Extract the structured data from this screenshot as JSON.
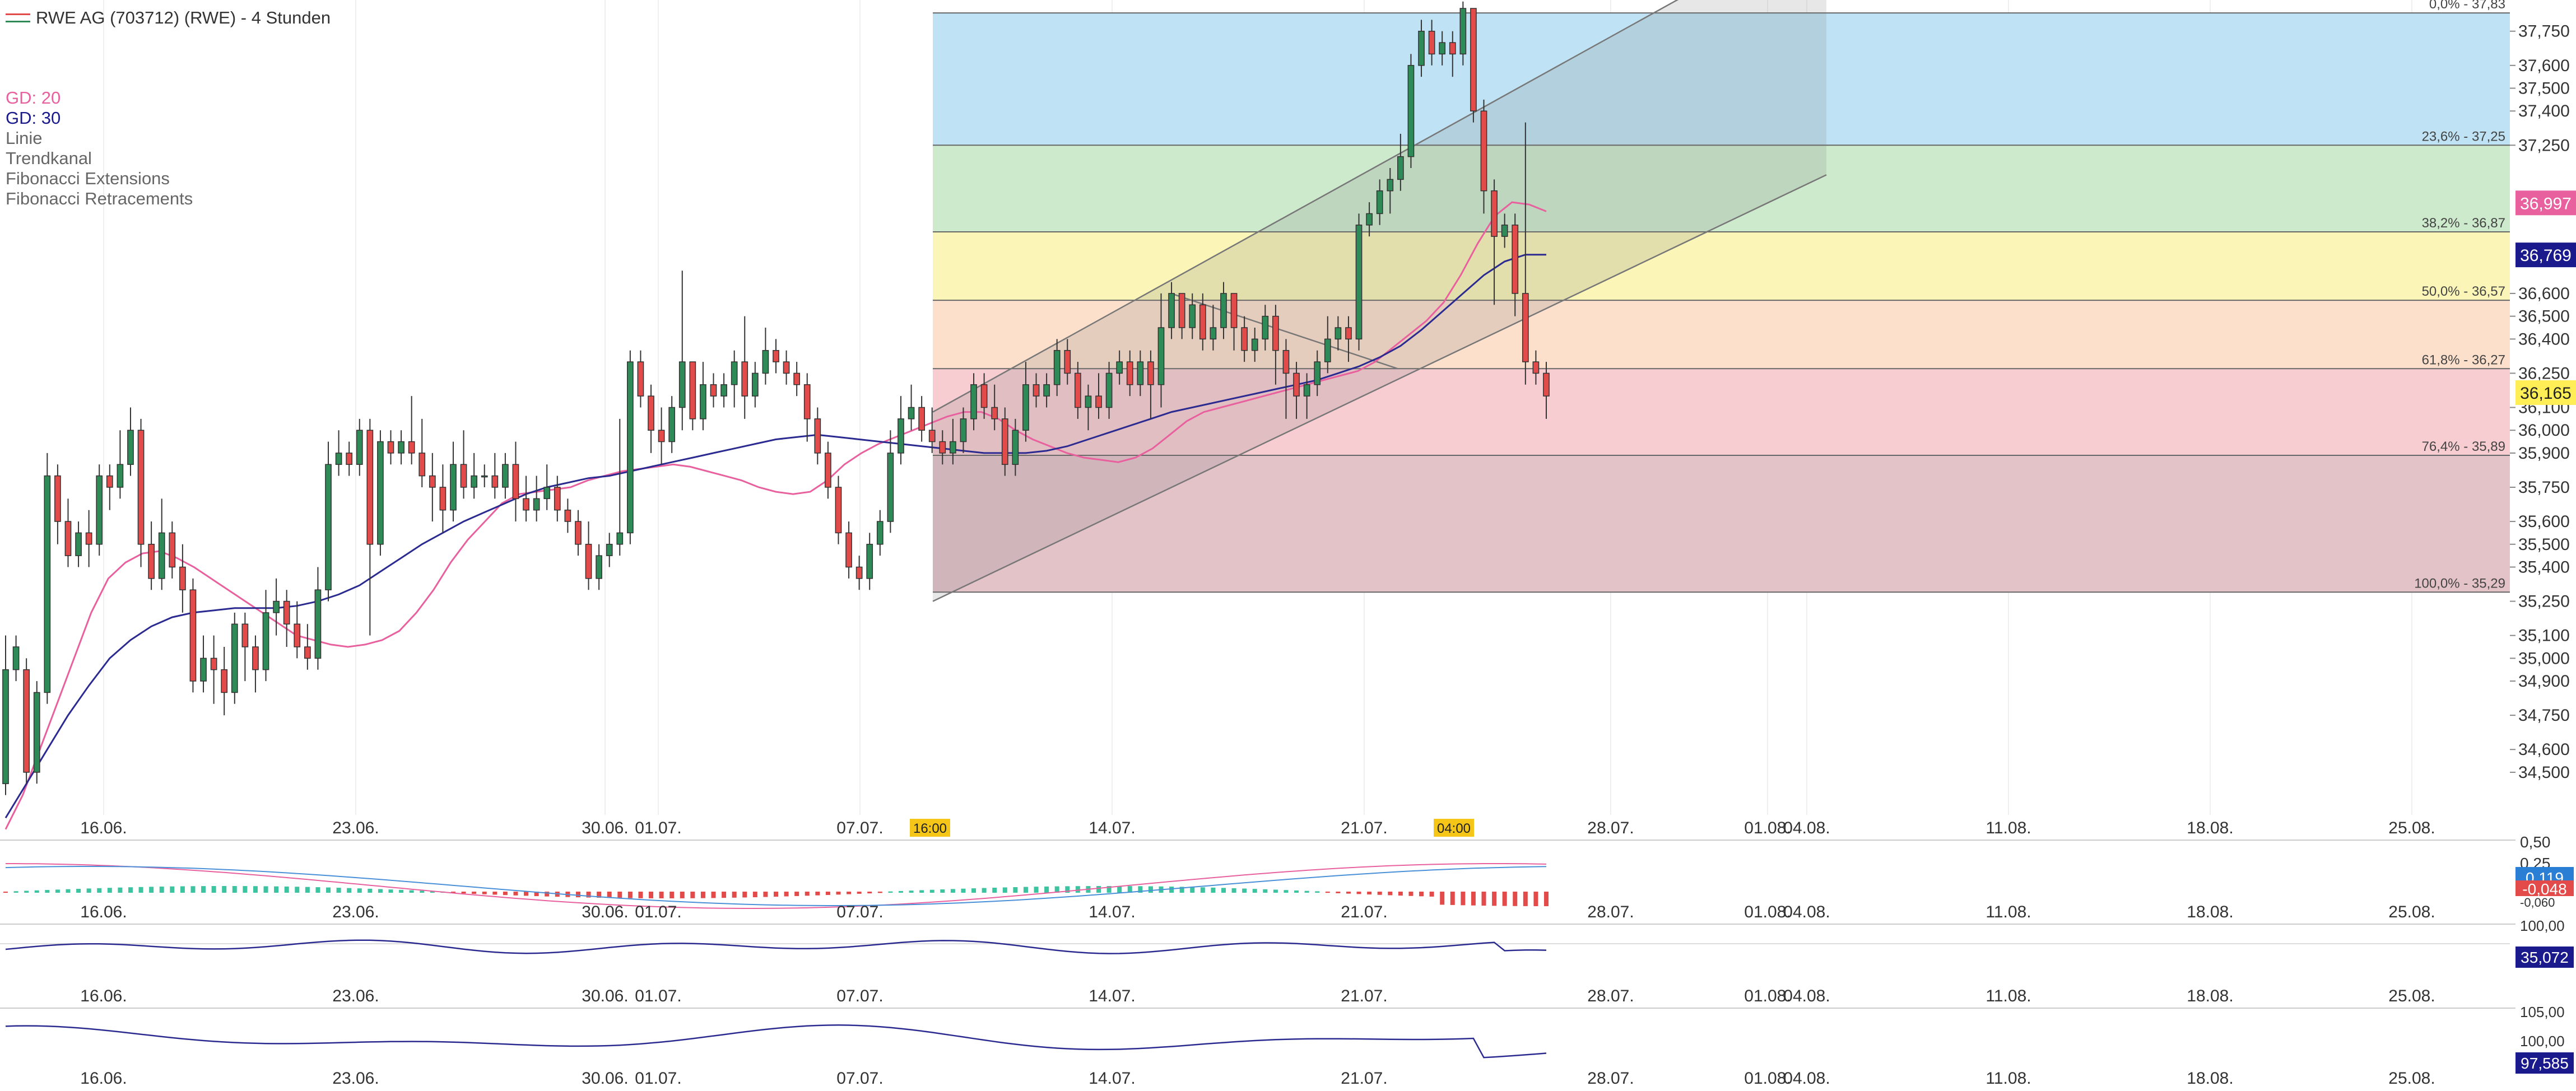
{
  "chart_data": {
    "type": "candlestick",
    "title": "RWE AG (703712) (RWE) - 4 Stunden",
    "legend": [
      {
        "label": "GD: 20",
        "color": "#e8609e"
      },
      {
        "label": "GD: 30",
        "color": "#1a1a8c"
      },
      {
        "label": "Linie",
        "color": "#666666"
      },
      {
        "label": "Trendkanal",
        "color": "#666666"
      },
      {
        "label": "Fibonacci Extensions",
        "color": "#666666"
      },
      {
        "label": "Fibonacci Retracements",
        "color": "#666666"
      }
    ],
    "ylim": [
      34.35,
      37.85
    ],
    "y_ticks": [
      "37,750",
      "37,600",
      "37,500",
      "37,400",
      "37,250",
      "36,600",
      "36,500",
      "36,400",
      "36,250",
      "36,100",
      "36,000",
      "35,900",
      "35,750",
      "35,600",
      "35,500",
      "35,400",
      "35,250",
      "35,100",
      "35,000",
      "34,900",
      "34,750",
      "34,600",
      "34,500"
    ],
    "x_ticks": [
      "16.06.",
      "23.06.",
      "30.06.",
      "01.07.",
      "07.07.",
      "14.07.",
      "21.07.",
      "28.07.",
      "01.08.",
      "04.08.",
      "11.08.",
      "18.08.",
      "25.08."
    ],
    "time_markers": [
      "16:00",
      "04:00"
    ],
    "fibonacci": [
      {
        "label": "0,0% - 37,83",
        "value": 37.83
      },
      {
        "label": "23,6% - 37,25",
        "value": 37.25
      },
      {
        "label": "38,2% - 36,87",
        "value": 36.87
      },
      {
        "label": "50,0% - 36,57",
        "value": 36.57
      },
      {
        "label": "61,8% - 36,27",
        "value": 36.27
      },
      {
        "label": "76,4% - 35,89",
        "value": 35.89
      },
      {
        "label": "100,0% - 35,29",
        "value": 35.29
      }
    ],
    "badges": [
      {
        "label": "36,997",
        "value": 36.997,
        "bg": "#e8609e",
        "fg": "#ffffff"
      },
      {
        "label": "36,769",
        "value": 36.769,
        "bg": "#1a1a8c",
        "fg": "#ffffff"
      },
      {
        "label": "36,165",
        "value": 36.165,
        "bg": "#ffee55",
        "fg": "#222222"
      }
    ],
    "candles": [
      [
        34.45,
        34.95,
        34.4,
        35.1
      ],
      [
        34.95,
        35.05,
        34.9,
        35.1
      ],
      [
        34.95,
        34.5,
        34.45,
        35.0
      ],
      [
        34.5,
        34.85,
        34.45,
        34.9
      ],
      [
        34.85,
        35.8,
        34.8,
        35.9
      ],
      [
        35.8,
        35.6,
        35.5,
        35.85
      ],
      [
        35.6,
        35.45,
        35.4,
        35.7
      ],
      [
        35.45,
        35.55,
        35.4,
        35.6
      ],
      [
        35.55,
        35.5,
        35.4,
        35.65
      ],
      [
        35.5,
        35.8,
        35.45,
        35.85
      ],
      [
        35.8,
        35.75,
        35.65,
        35.85
      ],
      [
        35.75,
        35.85,
        35.7,
        36.0
      ],
      [
        35.85,
        36.0,
        35.8,
        36.1
      ],
      [
        36.0,
        35.5,
        35.4,
        36.05
      ],
      [
        35.5,
        35.35,
        35.3,
        35.6
      ],
      [
        35.35,
        35.55,
        35.3,
        35.7
      ],
      [
        35.55,
        35.4,
        35.35,
        35.6
      ],
      [
        35.4,
        35.3,
        35.2,
        35.5
      ],
      [
        35.3,
        34.9,
        34.85,
        35.35
      ],
      [
        34.9,
        35.0,
        34.85,
        35.1
      ],
      [
        35.0,
        34.95,
        34.8,
        35.1
      ],
      [
        34.95,
        34.85,
        34.75,
        35.05
      ],
      [
        34.85,
        35.15,
        34.8,
        35.2
      ],
      [
        35.15,
        35.05,
        34.9,
        35.2
      ],
      [
        35.05,
        34.95,
        34.85,
        35.1
      ],
      [
        34.95,
        35.2,
        34.9,
        35.3
      ],
      [
        35.2,
        35.25,
        35.1,
        35.35
      ],
      [
        35.25,
        35.15,
        35.05,
        35.3
      ],
      [
        35.15,
        35.05,
        35.0,
        35.25
      ],
      [
        35.05,
        35.0,
        34.95,
        35.15
      ],
      [
        35.0,
        35.3,
        34.95,
        35.4
      ],
      [
        35.3,
        35.85,
        35.25,
        35.95
      ],
      [
        35.85,
        35.9,
        35.8,
        36.0
      ],
      [
        35.9,
        35.85,
        35.8,
        35.95
      ],
      [
        35.85,
        36.0,
        35.8,
        36.05
      ],
      [
        36.0,
        35.5,
        35.1,
        36.05
      ],
      [
        35.5,
        35.95,
        35.45,
        36.0
      ],
      [
        35.95,
        35.9,
        35.85,
        36.0
      ],
      [
        35.9,
        35.95,
        35.85,
        36.0
      ],
      [
        35.95,
        35.9,
        35.85,
        36.15
      ],
      [
        35.9,
        35.8,
        35.75,
        36.05
      ],
      [
        35.8,
        35.75,
        35.6,
        35.9
      ],
      [
        35.75,
        35.65,
        35.55,
        35.85
      ],
      [
        35.65,
        35.85,
        35.6,
        35.95
      ],
      [
        35.85,
        35.75,
        35.7,
        36.0
      ],
      [
        35.75,
        35.8,
        35.7,
        35.9
      ],
      [
        35.8,
        35.8,
        35.75,
        35.85
      ],
      [
        35.8,
        35.75,
        35.7,
        35.9
      ],
      [
        35.75,
        35.85,
        35.7,
        35.9
      ],
      [
        35.85,
        35.7,
        35.6,
        35.95
      ],
      [
        35.7,
        35.65,
        35.6,
        35.8
      ],
      [
        35.65,
        35.7,
        35.6,
        35.8
      ],
      [
        35.7,
        35.75,
        35.65,
        35.85
      ],
      [
        35.75,
        35.65,
        35.6,
        35.8
      ],
      [
        35.65,
        35.6,
        35.55,
        35.7
      ],
      [
        35.6,
        35.5,
        35.45,
        35.65
      ],
      [
        35.5,
        35.35,
        35.3,
        35.6
      ],
      [
        35.35,
        35.45,
        35.3,
        35.5
      ],
      [
        35.45,
        35.5,
        35.4,
        35.55
      ],
      [
        35.5,
        35.55,
        35.45,
        36.05
      ],
      [
        35.55,
        36.3,
        35.5,
        36.35
      ],
      [
        36.3,
        36.15,
        36.1,
        36.35
      ],
      [
        36.15,
        36.0,
        35.9,
        36.2
      ],
      [
        36.0,
        35.95,
        35.85,
        36.1
      ],
      [
        35.95,
        36.1,
        35.9,
        36.15
      ],
      [
        36.1,
        36.3,
        36.0,
        36.7
      ],
      [
        36.3,
        36.05,
        36.0,
        36.3
      ],
      [
        36.05,
        36.2,
        36.0,
        36.3
      ],
      [
        36.2,
        36.15,
        36.1,
        36.25
      ],
      [
        36.15,
        36.2,
        36.1,
        36.25
      ],
      [
        36.2,
        36.3,
        36.1,
        36.35
      ],
      [
        36.3,
        36.15,
        36.05,
        36.5
      ],
      [
        36.15,
        36.25,
        36.1,
        36.3
      ],
      [
        36.25,
        36.35,
        36.2,
        36.45
      ],
      [
        36.35,
        36.3,
        36.25,
        36.4
      ],
      [
        36.3,
        36.25,
        36.2,
        36.35
      ],
      [
        36.25,
        36.2,
        36.15,
        36.3
      ],
      [
        36.2,
        36.05,
        35.95,
        36.25
      ],
      [
        36.05,
        35.9,
        35.85,
        36.1
      ],
      [
        35.9,
        35.75,
        35.7,
        35.95
      ],
      [
        35.75,
        35.55,
        35.5,
        35.8
      ],
      [
        35.55,
        35.4,
        35.35,
        35.6
      ],
      [
        35.4,
        35.35,
        35.3,
        35.45
      ],
      [
        35.35,
        35.5,
        35.3,
        35.55
      ],
      [
        35.5,
        35.6,
        35.45,
        35.65
      ],
      [
        35.6,
        35.9,
        35.55,
        36.0
      ],
      [
        35.9,
        36.05,
        35.85,
        36.15
      ],
      [
        36.05,
        36.1,
        36.0,
        36.2
      ],
      [
        36.1,
        36.0,
        35.95,
        36.15
      ],
      [
        36.0,
        35.95,
        35.9,
        36.1
      ],
      [
        35.95,
        35.9,
        35.85,
        36.0
      ],
      [
        35.9,
        35.95,
        35.85,
        36.05
      ],
      [
        35.95,
        36.05,
        35.9,
        36.1
      ],
      [
        36.05,
        36.2,
        36.0,
        36.25
      ],
      [
        36.2,
        36.1,
        36.05,
        36.25
      ],
      [
        36.1,
        36.05,
        36.0,
        36.2
      ],
      [
        36.05,
        35.85,
        35.8,
        36.1
      ],
      [
        35.85,
        36.0,
        35.8,
        36.05
      ],
      [
        36.0,
        36.2,
        35.95,
        36.3
      ],
      [
        36.2,
        36.15,
        36.1,
        36.25
      ],
      [
        36.15,
        36.2,
        36.1,
        36.25
      ],
      [
        36.2,
        36.35,
        36.15,
        36.4
      ],
      [
        36.35,
        36.25,
        36.2,
        36.4
      ],
      [
        36.25,
        36.1,
        36.05,
        36.3
      ],
      [
        36.1,
        36.15,
        36.0,
        36.2
      ],
      [
        36.15,
        36.1,
        36.05,
        36.25
      ],
      [
        36.1,
        36.25,
        36.05,
        36.3
      ],
      [
        36.25,
        36.3,
        36.2,
        36.35
      ],
      [
        36.3,
        36.2,
        36.15,
        36.35
      ],
      [
        36.2,
        36.3,
        36.15,
        36.35
      ],
      [
        36.3,
        36.2,
        36.05,
        36.35
      ],
      [
        36.2,
        36.45,
        36.1,
        36.6
      ],
      [
        36.45,
        36.6,
        36.4,
        36.65
      ],
      [
        36.6,
        36.45,
        36.4,
        36.6
      ],
      [
        36.45,
        36.55,
        36.4,
        36.6
      ],
      [
        36.55,
        36.4,
        36.35,
        36.6
      ],
      [
        36.4,
        36.45,
        36.35,
        36.55
      ],
      [
        36.45,
        36.6,
        36.4,
        36.65
      ],
      [
        36.6,
        36.45,
        36.35,
        36.6
      ],
      [
        36.45,
        36.35,
        36.3,
        36.5
      ],
      [
        36.35,
        36.4,
        36.3,
        36.45
      ],
      [
        36.4,
        36.5,
        36.35,
        36.55
      ],
      [
        36.5,
        36.35,
        36.2,
        36.55
      ],
      [
        36.35,
        36.25,
        36.05,
        36.4
      ],
      [
        36.25,
        36.15,
        36.05,
        36.3
      ],
      [
        36.15,
        36.2,
        36.05,
        36.25
      ],
      [
        36.2,
        36.3,
        36.15,
        36.35
      ],
      [
        36.3,
        36.4,
        36.25,
        36.5
      ],
      [
        36.4,
        36.45,
        36.35,
        36.5
      ],
      [
        36.45,
        36.4,
        36.3,
        36.5
      ],
      [
        36.4,
        36.9,
        36.35,
        36.95
      ],
      [
        36.9,
        36.95,
        36.85,
        37.0
      ],
      [
        36.95,
        37.05,
        36.9,
        37.1
      ],
      [
        37.05,
        37.1,
        36.95,
        37.15
      ],
      [
        37.1,
        37.2,
        37.05,
        37.3
      ],
      [
        37.2,
        37.6,
        37.15,
        37.65
      ],
      [
        37.6,
        37.75,
        37.55,
        37.8
      ],
      [
        37.75,
        37.65,
        37.6,
        37.8
      ],
      [
        37.65,
        37.7,
        37.6,
        37.75
      ],
      [
        37.7,
        37.65,
        37.55,
        37.75
      ],
      [
        37.65,
        37.85,
        37.6,
        37.88
      ],
      [
        37.85,
        37.4,
        37.35,
        37.85
      ],
      [
        37.4,
        37.05,
        36.95,
        37.45
      ],
      [
        37.05,
        36.85,
        36.55,
        37.1
      ],
      [
        36.85,
        36.9,
        36.8,
        36.95
      ],
      [
        36.9,
        36.6,
        36.5,
        36.95
      ],
      [
        36.6,
        36.3,
        36.2,
        37.35
      ],
      [
        36.3,
        36.25,
        36.2,
        36.35
      ],
      [
        36.25,
        36.15,
        36.05,
        36.3
      ]
    ],
    "ma20": [
      34.25,
      34.4,
      34.6,
      34.8,
      35.0,
      35.2,
      35.35,
      35.42,
      35.46,
      35.47,
      35.44,
      35.4,
      35.35,
      35.3,
      35.25,
      35.2,
      35.15,
      35.1,
      35.08,
      35.06,
      35.05,
      35.06,
      35.08,
      35.12,
      35.2,
      35.3,
      35.42,
      35.52,
      35.6,
      35.68,
      35.72,
      35.73,
      35.74,
      35.75,
      35.78,
      35.8,
      35.82,
      35.83,
      35.84,
      35.85,
      35.84,
      35.82,
      35.8,
      35.78,
      35.75,
      35.73,
      35.72,
      35.73,
      35.78,
      35.85,
      35.9,
      35.94,
      35.97,
      36.0,
      36.03,
      36.06,
      36.08,
      36.08,
      36.05,
      36.0,
      35.96,
      35.93,
      35.9,
      35.88,
      35.87,
      35.86,
      35.88,
      35.92,
      35.98,
      36.04,
      36.08,
      36.1,
      36.12,
      36.14,
      36.16,
      36.18,
      36.2,
      36.22,
      36.24,
      36.26,
      36.3,
      36.36,
      36.42,
      36.48,
      36.56,
      36.68,
      36.82,
      36.94,
      37.0,
      36.99,
      36.96
    ],
    "ma30": [
      34.3,
      34.45,
      34.6,
      34.75,
      34.88,
      35.0,
      35.08,
      35.14,
      35.18,
      35.2,
      35.21,
      35.22,
      35.22,
      35.22,
      35.23,
      35.25,
      35.28,
      35.32,
      35.38,
      35.44,
      35.5,
      35.55,
      35.6,
      35.64,
      35.68,
      35.72,
      35.75,
      35.77,
      35.79,
      35.8,
      35.82,
      35.84,
      35.86,
      35.88,
      35.9,
      35.92,
      35.94,
      35.96,
      35.97,
      35.98,
      35.97,
      35.96,
      35.95,
      35.94,
      35.93,
      35.92,
      35.91,
      35.9,
      35.9,
      35.9,
      35.91,
      35.93,
      35.96,
      35.99,
      36.02,
      36.05,
      36.08,
      36.1,
      36.12,
      36.14,
      36.16,
      36.18,
      36.2,
      36.22,
      36.25,
      36.28,
      36.32,
      36.37,
      36.44,
      36.52,
      36.6,
      36.68,
      36.74,
      36.77,
      36.77
    ],
    "macd": {
      "labels": [
        "0,50",
        "0,25",
        "0,119",
        "-0,048",
        "-0,060"
      ],
      "value": "0,119",
      "signal": "-0,048"
    },
    "rsi": {
      "labels": [
        "100,00",
        "35,072"
      ],
      "value": "35,072"
    },
    "momentum": {
      "labels": [
        "105,00",
        "100,00",
        "97,585"
      ],
      "value": "97,585"
    }
  }
}
